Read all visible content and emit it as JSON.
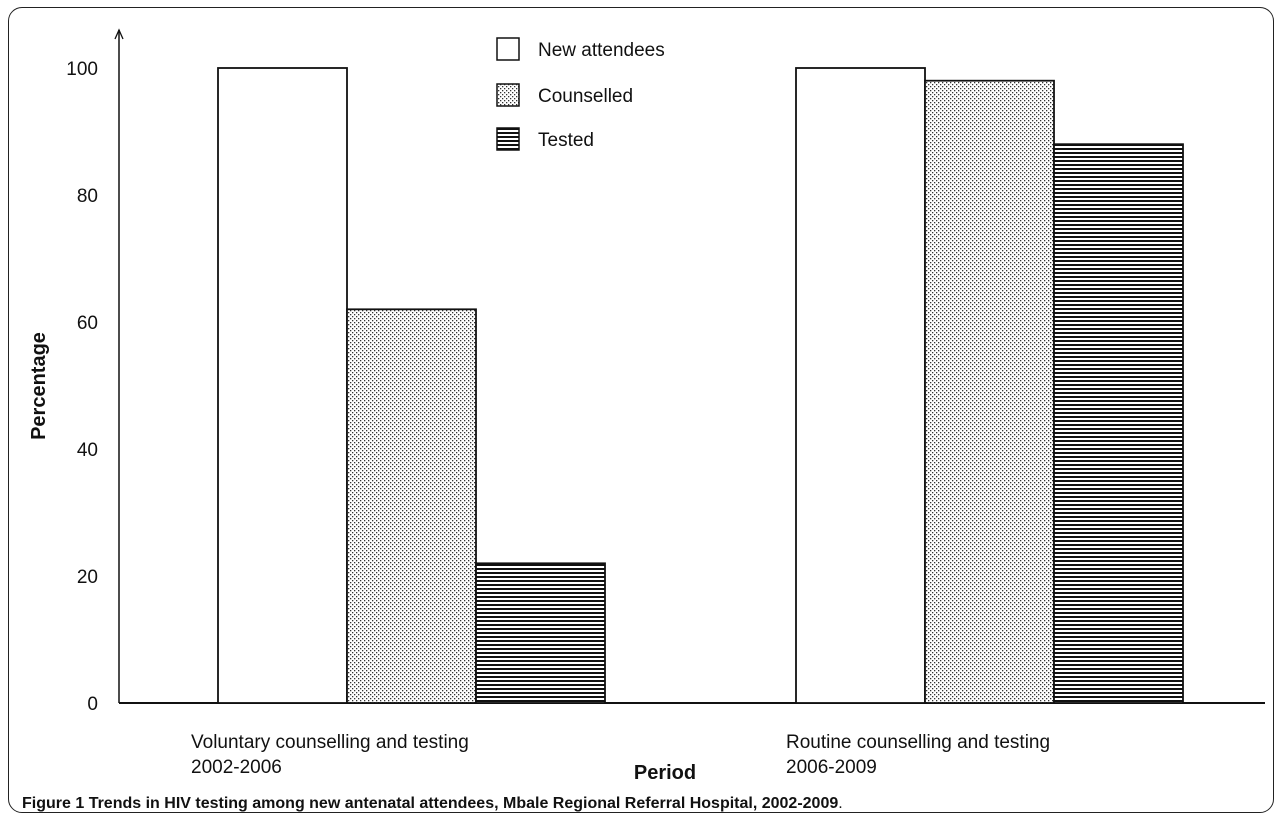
{
  "caption": {
    "label": "Figure 1",
    "text": "Trends in HIV testing among new antenatal attendees, Mbale Regional Referral Hospital, 2002-2009"
  },
  "chart_data": {
    "type": "bar",
    "title": "",
    "xlabel": "Period",
    "ylabel": "Percentage",
    "ylim": [
      0,
      100
    ],
    "yticks": [
      0,
      20,
      40,
      60,
      80,
      100
    ],
    "grid": false,
    "legend_position": "top-center",
    "categories": [
      [
        "Voluntary counselling and testing",
        "2002-2006"
      ],
      [
        "Routine counselling and testing",
        "2006-2009"
      ]
    ],
    "series": [
      {
        "name": "New attendees",
        "pattern": "white",
        "values": [
          100,
          100
        ]
      },
      {
        "name": "Counselled",
        "pattern": "dots",
        "values": [
          62,
          98
        ]
      },
      {
        "name": "Tested",
        "pattern": "hlines",
        "values": [
          22,
          88
        ]
      }
    ]
  }
}
